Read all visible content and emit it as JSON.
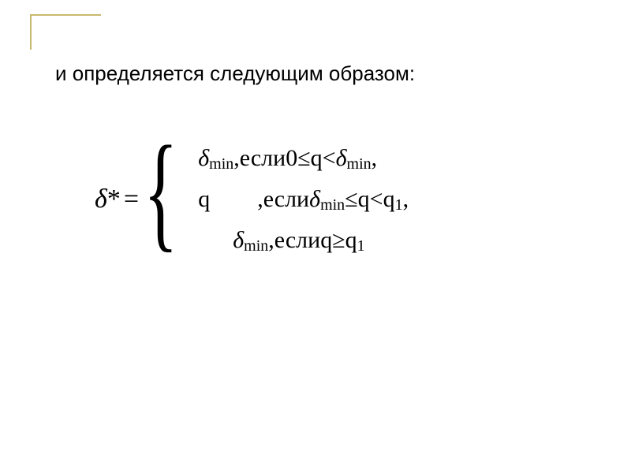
{
  "colors": {
    "corner_border": "#c9b86f",
    "text": "#000000",
    "background": "#ffffff"
  },
  "typography": {
    "heading_fontsize": 26,
    "equation_fontsize": 30,
    "delta_fontsize": 34,
    "sub_fontsize": 20,
    "font_family_heading": "Arial",
    "font_family_math": "Times New Roman"
  },
  "heading": "и определяется следующим образом:",
  "equation": {
    "lhs": {
      "delta": "δ",
      "star": "*",
      "equals": "="
    },
    "brace": "{",
    "cases": [
      {
        "value_delta": "δ",
        "value_sub": "min",
        "comma_sep": " , ",
        "cond_word": "если ",
        "cond_expr": "0≤q<",
        "cond_delta": "δ",
        "cond_sub": "min",
        "end_punct": " ,"
      },
      {
        "value_q": "q",
        "comma_sep": "    , ",
        "cond_word": "если ",
        "cond_delta": "δ",
        "cond_sub": "min",
        "cond_mid": " ≤q<q",
        "cond_q1sub": "1",
        "end_punct": ","
      },
      {
        "value_delta": "δ",
        "value_sub": "min",
        "comma_sep": "  , ",
        "cond_word": "если ",
        "cond_expr": "q≥q",
        "cond_q1sub": "1"
      }
    ]
  }
}
